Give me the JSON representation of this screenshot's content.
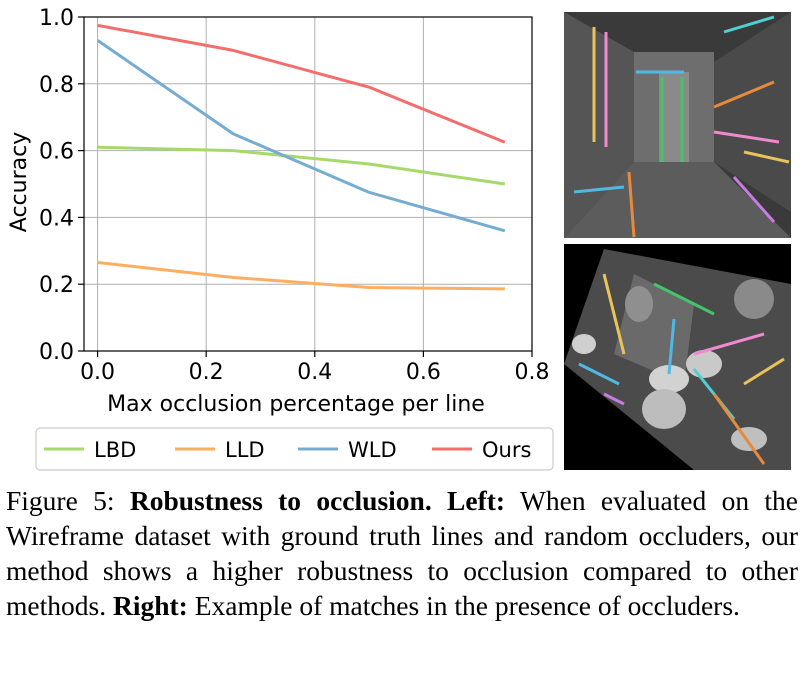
{
  "chart_data": {
    "type": "line",
    "xlabel": "Max occlusion percentage per line",
    "ylabel": "Accuracy",
    "xlim": [
      -0.025,
      0.8
    ],
    "ylim": [
      0.0,
      1.0
    ],
    "xticks": [
      "0.0",
      "0.2",
      "0.4",
      "0.6",
      "0.8"
    ],
    "yticks": [
      "0.0",
      "0.2",
      "0.4",
      "0.6",
      "0.8",
      "1.0"
    ],
    "grid": true,
    "legend_position": "bottom",
    "x": [
      0.0,
      0.25,
      0.5,
      0.75
    ],
    "series": [
      {
        "name": "LBD",
        "color": "#a6d96a",
        "values": [
          0.61,
          0.6,
          0.56,
          0.5
        ]
      },
      {
        "name": "LLD",
        "color": "#fdae61",
        "values": [
          0.265,
          0.22,
          0.19,
          0.186
        ]
      },
      {
        "name": "WLD",
        "color": "#74add1",
        "values": [
          0.93,
          0.65,
          0.475,
          0.36
        ]
      },
      {
        "name": "Ours",
        "color": "#f46d6d",
        "values": [
          0.975,
          0.9,
          0.79,
          0.625
        ]
      }
    ]
  },
  "figure": {
    "label": "Figure 5:",
    "title": "Robustness to occlusion.",
    "left_label": "Left:",
    "left_text": "When evaluated on the Wireframe dataset with ground truth lines and random occluders, our method shows a higher robustness to occlusion compared to other methods.",
    "right_label": "Right:",
    "right_text": "Example of matches in the presence of occluders."
  }
}
